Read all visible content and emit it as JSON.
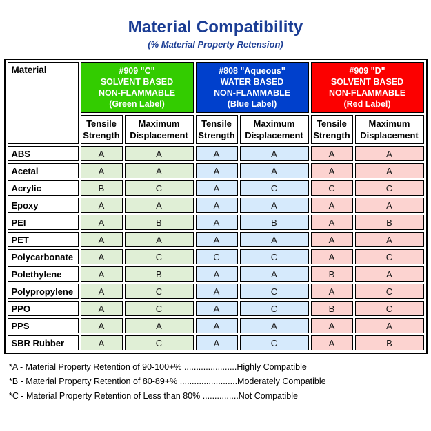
{
  "title": "Material Compatibility",
  "subtitle": "(% Material Property Retension)",
  "colors": {
    "title_text": "#1b3d94",
    "border": "#000000",
    "background": "#ffffff",
    "green_header_bg": "#33cc00",
    "blue_header_bg": "#0040cc",
    "red_header_bg": "#fc0000",
    "header_text": "#ffffff",
    "green_cell_bg": "#e0efd6",
    "blue_cell_bg": "#d6eafc",
    "red_cell_bg": "#fcd3d0"
  },
  "chart_data": {
    "type": "table",
    "title": "Material Compatibility",
    "subtitle": "(% Material Property Retension)",
    "corner_header": "Material",
    "groups": [
      {
        "name": "green",
        "label": "#909 \"C\"\nSOLVENT BASED\nNON-FLAMMABLE\n(Green Label)",
        "header_bg": "#33cc00",
        "cell_bg": "#e0efd6"
      },
      {
        "name": "blue",
        "label": "#808 \"Aqueous\"\nWATER BASED\nNON-FLAMMABLE\n(Blue Label)",
        "header_bg": "#0040cc",
        "cell_bg": "#d6eafc"
      },
      {
        "name": "red",
        "label": "#909 \"D\"\nSOLVENT BASED\nNON-FLAMMABLE\n(Red Label)",
        "header_bg": "#fc0000",
        "cell_bg": "#fcd3d0"
      }
    ],
    "sub_headers": [
      "Tensile\nStrength",
      "Maximum\nDisplacement"
    ],
    "rows": [
      {
        "material": "ABS",
        "values": [
          "A",
          "A",
          "A",
          "A",
          "A",
          "A"
        ]
      },
      {
        "material": "Acetal",
        "values": [
          "A",
          "A",
          "A",
          "A",
          "A",
          "A"
        ]
      },
      {
        "material": "Acrylic",
        "values": [
          "B",
          "C",
          "A",
          "C",
          "C",
          "C"
        ]
      },
      {
        "material": "Epoxy",
        "values": [
          "A",
          "A",
          "A",
          "A",
          "A",
          "A"
        ]
      },
      {
        "material": "PEI",
        "values": [
          "A",
          "B",
          "A",
          "B",
          "A",
          "B"
        ]
      },
      {
        "material": "PET",
        "values": [
          "A",
          "A",
          "A",
          "A",
          "A",
          "A"
        ]
      },
      {
        "material": "Polycarbonate",
        "values": [
          "A",
          "C",
          "C",
          "C",
          "A",
          "C"
        ]
      },
      {
        "material": "Polethylene",
        "values": [
          "A",
          "B",
          "A",
          "A",
          "B",
          "A"
        ]
      },
      {
        "material": "Polypropylene",
        "values": [
          "A",
          "C",
          "A",
          "C",
          "A",
          "C"
        ]
      },
      {
        "material": "PPO",
        "values": [
          "A",
          "C",
          "A",
          "C",
          "B",
          "C"
        ]
      },
      {
        "material": "PPS",
        "values": [
          "A",
          "A",
          "A",
          "A",
          "A",
          "A"
        ]
      },
      {
        "material": "SBR Rubber",
        "values": [
          "A",
          "C",
          "A",
          "C",
          "A",
          "B"
        ]
      }
    ]
  },
  "footnotes": [
    "*A - Material Property Retention of 90-100+% ......................Highly Compatible",
    "*B - Material Property Retention of 80-89+% ........................Moderately Compatible",
    "*C - Material Property Retention of Less than 80% ...............Not Compatible"
  ]
}
